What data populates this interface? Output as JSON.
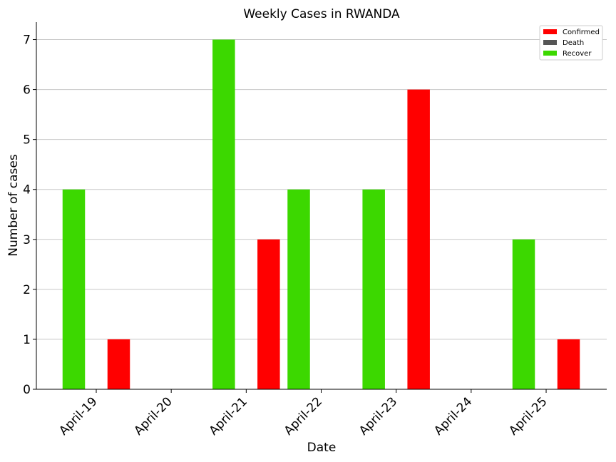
{
  "chart_data": {
    "type": "bar",
    "title": "Weekly Cases in RWANDA",
    "xlabel": "Date",
    "ylabel": "Number of cases",
    "categories": [
      "April-19",
      "April-20",
      "April-21",
      "April-22",
      "April-23",
      "April-24",
      "April-25"
    ],
    "series": [
      {
        "name": "Confirmed",
        "color": "#ff0000",
        "values": [
          1,
          0,
          3,
          0,
          6,
          0,
          1
        ]
      },
      {
        "name": "Death",
        "color": "#555555",
        "values": [
          0,
          0,
          0,
          0,
          0,
          0,
          0
        ]
      },
      {
        "name": "Recover",
        "color": "#3cd800",
        "values": [
          4,
          0,
          7,
          4,
          4,
          0,
          3
        ]
      }
    ],
    "ylim": [
      0,
      7.35
    ],
    "yticks": [
      0,
      1,
      2,
      3,
      4,
      5,
      6,
      7
    ],
    "grid": "horizontal",
    "legend_position": "top-right"
  }
}
